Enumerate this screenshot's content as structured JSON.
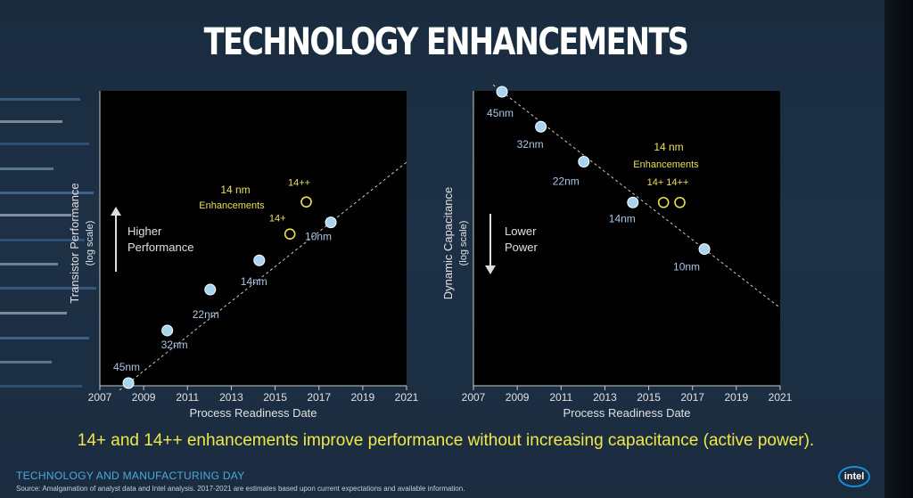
{
  "title": "TECHNOLOGY ENHANCEMENTS",
  "caption": "14+ and 14++ enhancements improve performance without increasing capacitance (active power).",
  "footer": {
    "event": "TECHNOLOGY AND MANUFACTURING DAY",
    "source": "Source: Amalgamation of analyst data and Intel analysis. 2017-2021 are estimates based upon current expectations and available information.",
    "logo": "intel"
  },
  "colors": {
    "point": "#a8d4f0",
    "enh": "#e8e05a",
    "label": "#a9c6e6",
    "caption": "#f0e84a"
  },
  "chart_data": [
    {
      "type": "scatter",
      "ylabel": "Transistor Performance",
      "ylabel_sub": "(log scale)",
      "xlabel": "Process Readiness Date",
      "x_ticks": [
        "2007",
        "2009",
        "2011",
        "2013",
        "2015",
        "2017",
        "2019",
        "2021"
      ],
      "xlim": [
        2007,
        2021
      ],
      "ylim": [
        0,
        100
      ],
      "direction_label": [
        "Higher",
        "Performance"
      ],
      "points": [
        {
          "label": "45nm",
          "x": 2007.7,
          "y": 0
        },
        {
          "label": "32nm",
          "x": 2009.6,
          "y": 18
        },
        {
          "label": "22nm",
          "x": 2011.7,
          "y": 32
        },
        {
          "label": "14nm",
          "x": 2014.1,
          "y": 42
        },
        {
          "label": "10nm",
          "x": 2017.6,
          "y": 55
        }
      ],
      "enhancements": [
        {
          "label": "14+",
          "x": 2015.6,
          "y": 51
        },
        {
          "label": "14++",
          "x": 2016.4,
          "y": 62
        }
      ],
      "annotation": [
        "14 nm",
        "Enhancements"
      ]
    },
    {
      "type": "scatter",
      "ylabel": "Dynamic Capacitance",
      "ylabel_sub": "(log scale)",
      "xlabel": "Process Readiness Date",
      "x_ticks": [
        "2007",
        "2009",
        "2011",
        "2013",
        "2015",
        "2017",
        "2019",
        "2021"
      ],
      "xlim": [
        2007,
        2021
      ],
      "ylim": [
        0,
        100
      ],
      "direction_label": [
        "Lower",
        "Power"
      ],
      "points": [
        {
          "label": "45nm",
          "x": 2007.7,
          "y": 100
        },
        {
          "label": "32nm",
          "x": 2009.6,
          "y": 88
        },
        {
          "label": "22nm",
          "x": 2011.7,
          "y": 76
        },
        {
          "label": "14nm",
          "x": 2014.1,
          "y": 62
        },
        {
          "label": "10nm",
          "x": 2017.6,
          "y": 46
        }
      ],
      "enhancements": [
        {
          "label": "14+",
          "x": 2015.6,
          "y": 62
        },
        {
          "label": "14++",
          "x": 2016.4,
          "y": 62
        }
      ],
      "enhancement_labels": "14+ 14++",
      "annotation": [
        "14 nm",
        "Enhancements"
      ]
    }
  ]
}
